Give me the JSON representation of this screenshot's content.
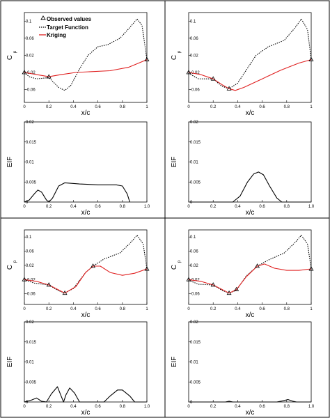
{
  "figure": {
    "legend": {
      "observed_label": "Observed values",
      "target_label": "Target Function",
      "kriging_label": "Kriging"
    },
    "colors": {
      "target": "#000000",
      "kriging": "#e02020",
      "eif": "#000000",
      "marker": "#000000"
    }
  },
  "chart_data": [
    {
      "type": "line",
      "panel": "top-left-cp",
      "xlabel": "x/c",
      "ylabel": "C",
      "ylabel_sub": "p",
      "xlim": [
        0,
        1
      ],
      "ylim": [
        -0.09,
        0.12
      ],
      "xticks": [
        0,
        0.2,
        0.4,
        0.6,
        0.8,
        1
      ],
      "xtick_labels": [
        "0",
        "0.2",
        "0.4",
        "0.6",
        "0.8",
        "1"
      ],
      "yticks": [
        0.1,
        0.06,
        0.02,
        -0.02,
        -0.06
      ],
      "ytick_labels": [
        "0.1",
        "0.06",
        "0.02",
        "-0.02",
        "-0.06"
      ],
      "legend_position": "top-left",
      "series": [
        {
          "name": "Target Function",
          "style": "dotted",
          "points": [
            [
              0,
              -0.02
            ],
            [
              0.04,
              -0.03
            ],
            [
              0.1,
              -0.035
            ],
            [
              0.2,
              -0.032
            ],
            [
              0.28,
              -0.055
            ],
            [
              0.33,
              -0.062
            ],
            [
              0.38,
              -0.05
            ],
            [
              0.45,
              -0.012
            ],
            [
              0.52,
              0.02
            ],
            [
              0.6,
              0.04
            ],
            [
              0.68,
              0.045
            ],
            [
              0.78,
              0.06
            ],
            [
              0.86,
              0.085
            ],
            [
              0.92,
              0.105
            ],
            [
              0.96,
              0.09
            ],
            [
              1,
              0.01
            ]
          ]
        },
        {
          "name": "Kriging",
          "style": "solid",
          "points": [
            [
              0,
              -0.02
            ],
            [
              0.1,
              -0.025
            ],
            [
              0.2,
              -0.03
            ],
            [
              0.3,
              -0.025
            ],
            [
              0.42,
              -0.02
            ],
            [
              0.55,
              -0.018
            ],
            [
              0.7,
              -0.016
            ],
            [
              0.85,
              -0.008
            ],
            [
              1,
              0.01
            ]
          ]
        },
        {
          "name": "Observed values",
          "style": "marker",
          "points": [
            [
              0,
              -0.02
            ],
            [
              0.2,
              -0.03
            ],
            [
              1,
              0.01
            ]
          ]
        }
      ]
    },
    {
      "type": "line",
      "panel": "top-right-cp",
      "xlabel": "x/c",
      "ylabel": "C",
      "ylabel_sub": "p",
      "xlim": [
        0,
        1
      ],
      "ylim": [
        -0.09,
        0.12
      ],
      "xticks": [
        0,
        0.2,
        0.4,
        0.6,
        0.8,
        1
      ],
      "xtick_labels": [
        "0",
        "0.2",
        "0.4",
        "0.6",
        "0.8",
        "1"
      ],
      "yticks": [
        0.1,
        0.06,
        0.02,
        -0.02,
        -0.06
      ],
      "ytick_labels": [
        "0.1",
        "0.06",
        "0.02",
        "-0.02",
        "-0.06"
      ],
      "series": [
        {
          "name": "Target Function",
          "style": "dotted",
          "points": [
            [
              0,
              -0.022
            ],
            [
              0.08,
              -0.035
            ],
            [
              0.2,
              -0.035
            ],
            [
              0.27,
              -0.052
            ],
            [
              0.33,
              -0.058
            ],
            [
              0.4,
              -0.045
            ],
            [
              0.48,
              -0.01
            ],
            [
              0.55,
              0.02
            ],
            [
              0.65,
              0.04
            ],
            [
              0.78,
              0.055
            ],
            [
              0.87,
              0.085
            ],
            [
              0.92,
              0.105
            ],
            [
              0.97,
              0.08
            ],
            [
              1,
              0.01
            ]
          ]
        },
        {
          "name": "Kriging",
          "style": "solid",
          "points": [
            [
              0,
              -0.02
            ],
            [
              0.1,
              -0.025
            ],
            [
              0.2,
              -0.035
            ],
            [
              0.28,
              -0.05
            ],
            [
              0.33,
              -0.058
            ],
            [
              0.38,
              -0.062
            ],
            [
              0.45,
              -0.055
            ],
            [
              0.6,
              -0.035
            ],
            [
              0.75,
              -0.015
            ],
            [
              0.9,
              0.002
            ],
            [
              1,
              0.01
            ]
          ]
        },
        {
          "name": "Observed values",
          "style": "marker",
          "points": [
            [
              0,
              -0.02
            ],
            [
              0.2,
              -0.035
            ],
            [
              0.33,
              -0.058
            ],
            [
              1,
              0.01
            ]
          ]
        }
      ]
    },
    {
      "type": "line",
      "panel": "upper-left-eif",
      "xlabel": "x/c",
      "ylabel": "EIF",
      "xlim": [
        0,
        1
      ],
      "ylim": [
        0,
        0.02
      ],
      "xticks": [
        0,
        0.2,
        0.4,
        0.6,
        0.8,
        1
      ],
      "xtick_labels": [
        "0",
        "0.2",
        "0.4",
        "0.6",
        "0.8",
        "1.0"
      ],
      "yticks": [
        0,
        0.005,
        0.01,
        0.015,
        0.02
      ],
      "ytick_labels": [
        "0",
        "0.005",
        "0.01",
        "0.015",
        "0.02"
      ],
      "series": [
        {
          "name": "EIF",
          "style": "solid",
          "points": [
            [
              0,
              0
            ],
            [
              0.04,
              0.0005
            ],
            [
              0.08,
              0.002
            ],
            [
              0.11,
              0.003
            ],
            [
              0.14,
              0.0025
            ],
            [
              0.18,
              0.0005
            ],
            [
              0.2,
              0
            ],
            [
              0.23,
              0.001
            ],
            [
              0.28,
              0.004
            ],
            [
              0.33,
              0.0048
            ],
            [
              0.45,
              0.0045
            ],
            [
              0.6,
              0.0043
            ],
            [
              0.75,
              0.0043
            ],
            [
              0.8,
              0.004
            ],
            [
              0.84,
              0.002
            ],
            [
              0.86,
              0
            ]
          ]
        }
      ]
    },
    {
      "type": "line",
      "panel": "upper-right-eif",
      "xlabel": "x/c",
      "ylabel": "EIF",
      "xlim": [
        0,
        1
      ],
      "ylim": [
        0,
        0.02
      ],
      "xticks": [
        0,
        0.2,
        0.4,
        0.6,
        0.8,
        1
      ],
      "xtick_labels": [
        "0",
        "0.2",
        "0.4",
        "0.6",
        "0.8",
        "1.0"
      ],
      "yticks": [
        0,
        0.005,
        0.01,
        0.015,
        0.02
      ],
      "ytick_labels": [
        "0",
        "0.005",
        "0.01",
        "0.015",
        "0.02"
      ],
      "series": [
        {
          "name": "EIF",
          "style": "solid",
          "points": [
            [
              0,
              0
            ],
            [
              0.36,
              0
            ],
            [
              0.42,
              0.0015
            ],
            [
              0.48,
              0.005
            ],
            [
              0.53,
              0.007
            ],
            [
              0.57,
              0.0075
            ],
            [
              0.61,
              0.0068
            ],
            [
              0.66,
              0.004
            ],
            [
              0.72,
              0.001
            ],
            [
              0.76,
              0
            ],
            [
              1,
              0
            ]
          ]
        }
      ]
    },
    {
      "type": "line",
      "panel": "lower-left-cp",
      "xlabel": "x/c",
      "ylabel": "C",
      "ylabel_sub": "p",
      "xlim": [
        0,
        1
      ],
      "ylim": [
        -0.09,
        0.12
      ],
      "xticks": [
        0,
        0.2,
        0.4,
        0.6,
        0.8,
        1
      ],
      "xtick_labels": [
        "0",
        "0.2",
        "0.4",
        "0.6",
        "0.8",
        "1"
      ],
      "yticks": [
        0.1,
        0.06,
        0.02,
        -0.02,
        -0.06
      ],
      "ytick_labels": [
        "0.1",
        "0.06",
        "0.02",
        "-0.02",
        "-0.06"
      ],
      "series": [
        {
          "name": "Target Function",
          "style": "dotted",
          "points": [
            [
              0,
              -0.02
            ],
            [
              0.08,
              -0.03
            ],
            [
              0.2,
              -0.035
            ],
            [
              0.27,
              -0.05
            ],
            [
              0.33,
              -0.058
            ],
            [
              0.4,
              -0.045
            ],
            [
              0.5,
              0
            ],
            [
              0.56,
              0.018
            ],
            [
              0.65,
              0.038
            ],
            [
              0.78,
              0.055
            ],
            [
              0.87,
              0.085
            ],
            [
              0.92,
              0.105
            ],
            [
              0.97,
              0.08
            ],
            [
              1,
              0.01
            ]
          ]
        },
        {
          "name": "Kriging",
          "style": "solid",
          "points": [
            [
              0,
              -0.02
            ],
            [
              0.1,
              -0.025
            ],
            [
              0.2,
              -0.035
            ],
            [
              0.33,
              -0.058
            ],
            [
              0.42,
              -0.04
            ],
            [
              0.5,
              0
            ],
            [
              0.56,
              0.018
            ],
            [
              0.62,
              0.018
            ],
            [
              0.7,
              0
            ],
            [
              0.8,
              -0.008
            ],
            [
              0.9,
              -0.002
            ],
            [
              1,
              0.01
            ]
          ]
        },
        {
          "name": "Observed values",
          "style": "marker",
          "points": [
            [
              0,
              -0.02
            ],
            [
              0.2,
              -0.035
            ],
            [
              0.33,
              -0.058
            ],
            [
              0.56,
              0.018
            ],
            [
              1,
              0.01
            ]
          ]
        }
      ]
    },
    {
      "type": "line",
      "panel": "lower-right-cp",
      "xlabel": "x/c",
      "ylabel": "C",
      "ylabel_sub": "p",
      "xlim": [
        0,
        1
      ],
      "ylim": [
        -0.09,
        0.12
      ],
      "xticks": [
        0,
        0.2,
        0.4,
        0.6,
        0.8,
        1
      ],
      "xtick_labels": [
        "0",
        "0.2",
        "0.4",
        "0.6",
        "0.8",
        "1"
      ],
      "yticks": [
        0.1,
        0.06,
        0.02,
        -0.02,
        -0.06
      ],
      "ytick_labels": [
        "0.1",
        "0.06",
        "0.02",
        "-0.02",
        "-0.06"
      ],
      "series": [
        {
          "name": "Target Function",
          "style": "dotted",
          "points": [
            [
              0,
              -0.022
            ],
            [
              0.08,
              -0.033
            ],
            [
              0.2,
              -0.035
            ],
            [
              0.27,
              -0.05
            ],
            [
              0.33,
              -0.058
            ],
            [
              0.39,
              -0.05
            ],
            [
              0.47,
              -0.01
            ],
            [
              0.56,
              0.018
            ],
            [
              0.65,
              0.035
            ],
            [
              0.78,
              0.055
            ],
            [
              0.87,
              0.085
            ],
            [
              0.92,
              0.105
            ],
            [
              0.97,
              0.08
            ],
            [
              1,
              0.01
            ]
          ]
        },
        {
          "name": "Kriging",
          "style": "solid",
          "points": [
            [
              0,
              -0.02
            ],
            [
              0.1,
              -0.025
            ],
            [
              0.2,
              -0.035
            ],
            [
              0.33,
              -0.058
            ],
            [
              0.39,
              -0.048
            ],
            [
              0.47,
              -0.012
            ],
            [
              0.56,
              0.018
            ],
            [
              0.62,
              0.024
            ],
            [
              0.7,
              0.012
            ],
            [
              0.8,
              0.006
            ],
            [
              0.9,
              0.006
            ],
            [
              1,
              0.01
            ]
          ]
        },
        {
          "name": "Observed values",
          "style": "marker",
          "points": [
            [
              0,
              -0.02
            ],
            [
              0.2,
              -0.035
            ],
            [
              0.33,
              -0.058
            ],
            [
              0.39,
              -0.048
            ],
            [
              0.56,
              0.018
            ],
            [
              1,
              0.01
            ]
          ]
        }
      ]
    },
    {
      "type": "line",
      "panel": "lower-left-eif",
      "xlabel": "x/c",
      "ylabel": "EIF",
      "xlim": [
        0,
        1
      ],
      "ylim": [
        0,
        0.02
      ],
      "xticks": [
        0,
        0.2,
        0.4,
        0.6,
        0.8,
        1
      ],
      "xtick_labels": [
        "0",
        "0.2",
        "0.4",
        "0.6",
        "0.8",
        "1.0"
      ],
      "yticks": [
        0,
        0.005,
        0.01,
        0.015,
        0.02
      ],
      "ytick_labels": [
        "0",
        "0.005",
        "0.01",
        "0.015",
        "0.02"
      ],
      "series": [
        {
          "name": "EIF",
          "style": "solid",
          "points": [
            [
              0,
              0
            ],
            [
              0.06,
              0.0005
            ],
            [
              0.1,
              0.001
            ],
            [
              0.14,
              0.0002
            ],
            [
              0.18,
              0
            ],
            [
              0.22,
              0.002
            ],
            [
              0.27,
              0.0038
            ],
            [
              0.3,
              0.0015
            ],
            [
              0.32,
              0
            ],
            [
              0.34,
              0.0018
            ],
            [
              0.37,
              0.0035
            ],
            [
              0.41,
              0.0022
            ],
            [
              0.45,
              0
            ],
            [
              0.65,
              0
            ],
            [
              0.7,
              0.0015
            ],
            [
              0.76,
              0.003
            ],
            [
              0.8,
              0.003
            ],
            [
              0.86,
              0.0015
            ],
            [
              0.9,
              0
            ],
            [
              1,
              0
            ]
          ]
        }
      ]
    },
    {
      "type": "line",
      "panel": "lower-right-eif",
      "xlabel": "x/c",
      "ylabel": "EIF",
      "xlim": [
        0,
        1
      ],
      "ylim": [
        0,
        0.02
      ],
      "xticks": [
        0,
        0.2,
        0.4,
        0.6,
        0.8,
        1
      ],
      "xtick_labels": [
        "0",
        "0.2",
        "0.4",
        "0.6",
        "0.8",
        "1.0"
      ],
      "yticks": [
        0,
        0.005,
        0.01,
        0.015,
        0.02
      ],
      "ytick_labels": [
        "0",
        "0.005",
        "0.01",
        "0.015",
        "0.02"
      ],
      "series": [
        {
          "name": "EIF",
          "style": "solid",
          "points": [
            [
              0,
              0
            ],
            [
              0.3,
              0
            ],
            [
              0.33,
              0.0002
            ],
            [
              0.36,
              0
            ],
            [
              0.72,
              0
            ],
            [
              0.77,
              0.0003
            ],
            [
              0.81,
              0.0006
            ],
            [
              0.85,
              0.0002
            ],
            [
              0.88,
              0
            ],
            [
              1,
              0
            ]
          ]
        }
      ]
    }
  ]
}
